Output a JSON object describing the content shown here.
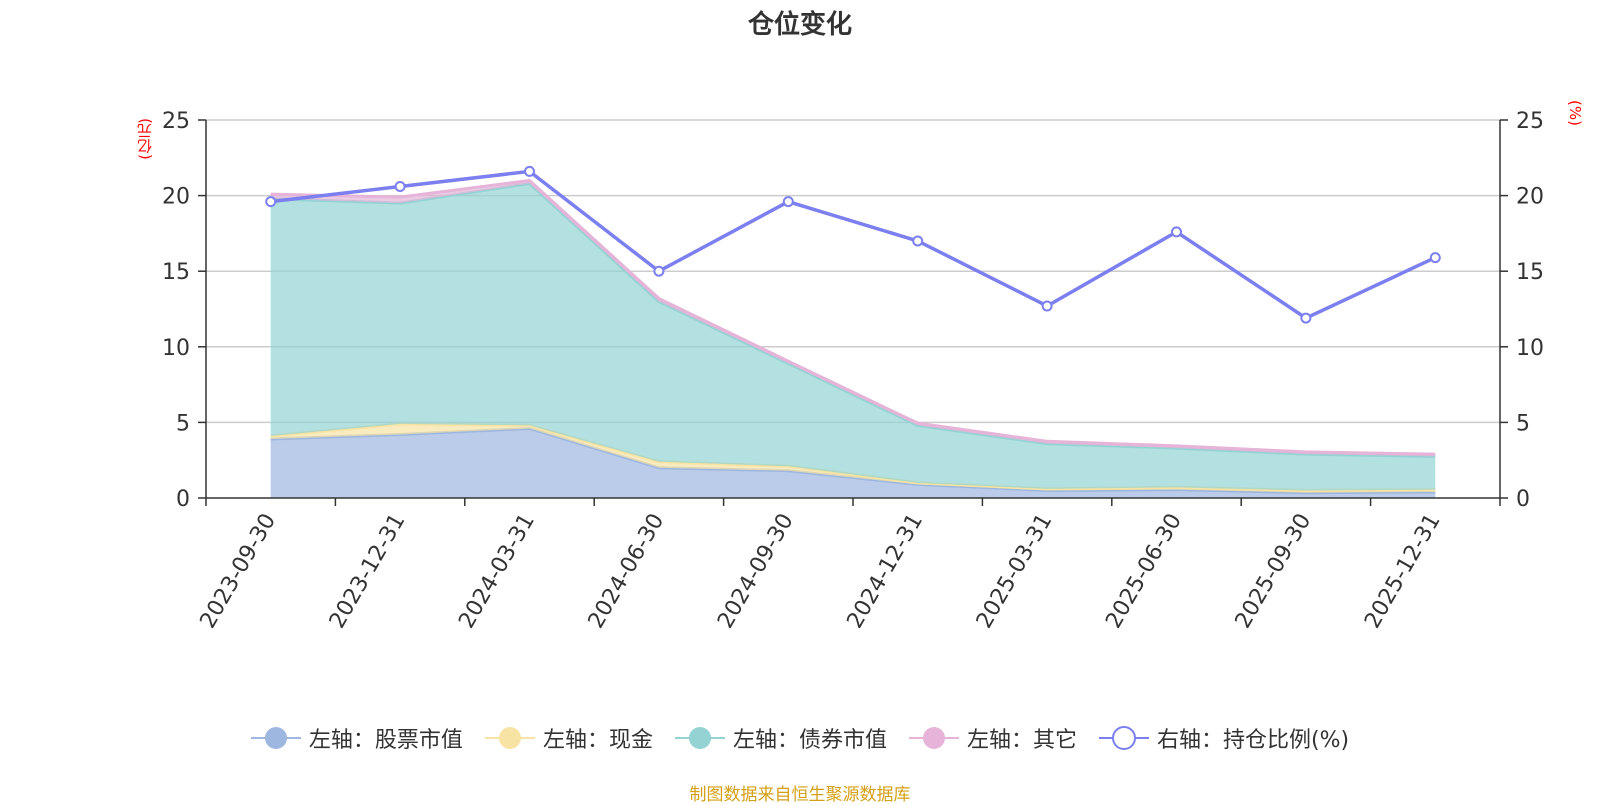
{
  "chart_data": {
    "type": "area",
    "title": "仓位变化",
    "left_axis_unit": "(亿元)",
    "right_axis_unit": "(%)",
    "categories": [
      "2023-09-30",
      "2023-12-31",
      "2024-03-31",
      "2024-06-30",
      "2024-09-30",
      "2024-12-31",
      "2025-03-31",
      "2025-06-30",
      "2025-09-30",
      "2025-12-31"
    ],
    "left_ylim": [
      0,
      25
    ],
    "right_ylim": [
      0,
      25
    ],
    "y_ticks": [
      0,
      5,
      10,
      15,
      20,
      25
    ],
    "stacked_series": [
      {
        "name": "左轴：股票市值",
        "color": "#9db7e0",
        "values": [
          3.9,
          4.2,
          4.6,
          2.0,
          1.8,
          0.9,
          0.5,
          0.55,
          0.35,
          0.4
        ]
      },
      {
        "name": "左轴：现金",
        "color": "#f7e3a3",
        "values": [
          0.2,
          0.7,
          0.2,
          0.4,
          0.3,
          0.1,
          0.1,
          0.15,
          0.15,
          0.15
        ]
      },
      {
        "name": "左轴：债券市值",
        "color": "#93d3d3",
        "values": [
          15.7,
          14.6,
          16.0,
          10.6,
          6.8,
          3.8,
          3.0,
          2.6,
          2.4,
          2.2
        ]
      },
      {
        "name": "左轴：其它",
        "color": "#e6b4d8",
        "values": [
          0.3,
          0.4,
          0.2,
          0.2,
          0.15,
          0.15,
          0.15,
          0.15,
          0.15,
          0.15
        ]
      }
    ],
    "line_series": {
      "name": "右轴：持仓比例(%)",
      "color": "#7b7fef",
      "values": [
        19.6,
        20.6,
        21.6,
        15.0,
        19.6,
        17.0,
        12.7,
        17.6,
        11.9,
        15.9
      ]
    },
    "legend_position": "bottom",
    "grid": true
  },
  "source_note": "制图数据来自恒生聚源数据库"
}
